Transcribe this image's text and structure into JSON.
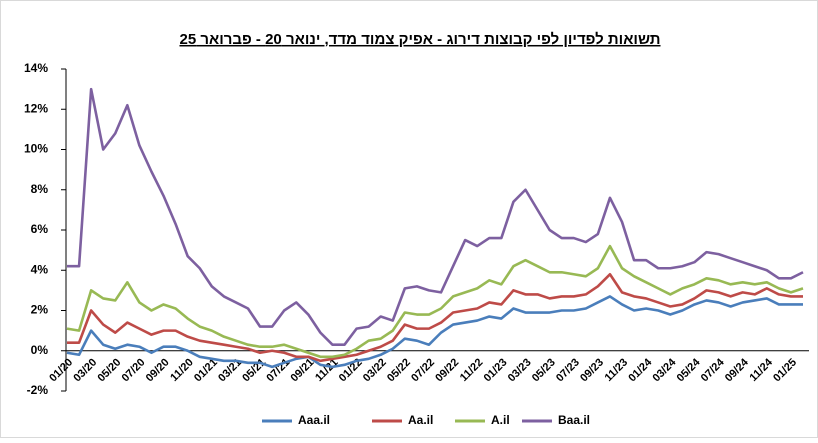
{
  "chart_data": {
    "type": "line",
    "title": "תשואות לפדיון לפי קבוצות דירוג - אפיק צמוד מדד, ינואר 20 - פברואר 25",
    "categories": [
      "01/20",
      null,
      "03/20",
      null,
      "05/20",
      null,
      "07/20",
      null,
      "09/20",
      null,
      "11/20",
      null,
      "01/21",
      null,
      "03/21",
      null,
      "05/21",
      null,
      "07/21",
      null,
      "09/21",
      null,
      "11/21",
      null,
      "01/22",
      null,
      "03/22",
      null,
      "05/22",
      null,
      "07/22",
      null,
      "09/22",
      null,
      "11/22",
      null,
      "01/23",
      null,
      "03/23",
      null,
      "05/23",
      null,
      "07/23",
      null,
      "09/23",
      null,
      "11/23",
      null,
      "01/24",
      null,
      "03/24",
      null,
      "05/24",
      null,
      "07/24",
      null,
      "09/24",
      null,
      "11/24",
      null,
      "01/25",
      null
    ],
    "series": [
      {
        "name": "Aaa.il",
        "color": "#4a7ebb",
        "values": [
          -0.1,
          -0.2,
          1.0,
          0.3,
          0.1,
          0.3,
          0.2,
          -0.1,
          0.2,
          0.2,
          0.0,
          -0.3,
          -0.4,
          -0.5,
          -0.5,
          -0.6,
          -0.6,
          -0.8,
          -0.6,
          -0.4,
          -0.3,
          -0.7,
          -0.8,
          -0.7,
          -0.5,
          -0.4,
          -0.2,
          0.1,
          0.6,
          0.5,
          0.3,
          0.9,
          1.3,
          1.4,
          1.5,
          1.7,
          1.6,
          2.1,
          1.9,
          1.9,
          1.9,
          2.0,
          2.0,
          2.1,
          2.4,
          2.7,
          2.3,
          2.0,
          2.1,
          2.0,
          1.8,
          2.0,
          2.3,
          2.5,
          2.4,
          2.2,
          2.4,
          2.5,
          2.6,
          2.3,
          2.3,
          2.3
        ]
      },
      {
        "name": "Aa.il",
        "color": "#be4b48",
        "values": [
          0.4,
          0.4,
          2.0,
          1.3,
          0.9,
          1.4,
          1.1,
          0.8,
          1.0,
          1.0,
          0.7,
          0.5,
          0.4,
          0.3,
          0.2,
          0.1,
          -0.1,
          0.0,
          -0.1,
          -0.3,
          -0.3,
          -0.5,
          -0.4,
          -0.3,
          -0.2,
          0.0,
          0.2,
          0.5,
          1.3,
          1.1,
          1.1,
          1.4,
          1.9,
          2.0,
          2.1,
          2.4,
          2.3,
          3.0,
          2.8,
          2.8,
          2.6,
          2.7,
          2.7,
          2.8,
          3.2,
          3.8,
          2.9,
          2.7,
          2.6,
          2.4,
          2.2,
          2.3,
          2.6,
          3.0,
          2.9,
          2.7,
          2.9,
          2.8,
          3.1,
          2.8,
          2.7,
          2.7
        ]
      },
      {
        "name": "A.il",
        "color": "#98b954",
        "values": [
          1.1,
          1.0,
          3.0,
          2.6,
          2.5,
          3.4,
          2.4,
          2.0,
          2.3,
          2.1,
          1.6,
          1.2,
          1.0,
          0.7,
          0.5,
          0.3,
          0.2,
          0.2,
          0.3,
          0.1,
          -0.1,
          -0.3,
          -0.3,
          -0.2,
          0.1,
          0.5,
          0.6,
          1.0,
          1.9,
          1.8,
          1.8,
          2.1,
          2.7,
          2.9,
          3.1,
          3.5,
          3.3,
          4.2,
          4.5,
          4.2,
          3.9,
          3.9,
          3.8,
          3.7,
          4.1,
          5.2,
          4.1,
          3.7,
          3.4,
          3.1,
          2.8,
          3.1,
          3.3,
          3.6,
          3.5,
          3.3,
          3.4,
          3.3,
          3.4,
          3.1,
          2.9,
          3.1
        ]
      },
      {
        "name": "Baa.il",
        "color": "#7d60a0",
        "values": [
          4.2,
          4.2,
          13.0,
          10.0,
          10.8,
          12.2,
          10.2,
          8.9,
          7.7,
          6.3,
          4.7,
          4.1,
          3.2,
          2.7,
          2.4,
          2.1,
          1.2,
          1.2,
          2.0,
          2.4,
          1.8,
          0.9,
          0.3,
          0.3,
          1.1,
          1.2,
          1.7,
          1.5,
          3.1,
          3.2,
          3.0,
          2.9,
          4.2,
          5.5,
          5.2,
          5.6,
          5.6,
          7.4,
          8.0,
          7.0,
          6.0,
          5.6,
          5.6,
          5.4,
          5.8,
          7.6,
          6.4,
          4.5,
          4.5,
          4.1,
          4.1,
          4.2,
          4.4,
          4.9,
          4.8,
          4.6,
          4.4,
          4.2,
          4.0,
          3.6,
          3.6,
          3.9
        ]
      }
    ],
    "ylim": [
      -2,
      14
    ],
    "yticks": [
      {
        "value": -2,
        "label": "-2%"
      },
      {
        "value": 0,
        "label": "0%"
      },
      {
        "value": 2,
        "label": "2%"
      },
      {
        "value": 4,
        "label": "4%"
      },
      {
        "value": 6,
        "label": "6%"
      },
      {
        "value": 8,
        "label": "8%"
      },
      {
        "value": 10,
        "label": "10%"
      },
      {
        "value": 12,
        "label": "12%"
      },
      {
        "value": 14,
        "label": "14%"
      }
    ],
    "legend": "bottom"
  }
}
